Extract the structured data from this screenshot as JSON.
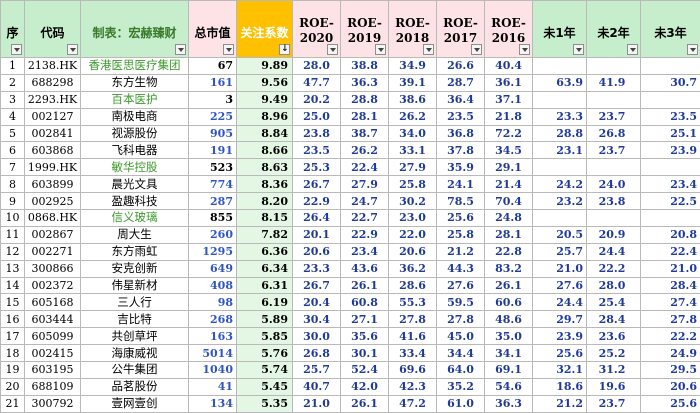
{
  "headers": {
    "seq": "序",
    "code": "代码",
    "title": "制表：宏赫臻财",
    "cap": "总市值",
    "focus": "关注系数",
    "roe2020": "ROE-2020",
    "roe2019": "ROE-2019",
    "roe2018": "ROE-2018",
    "roe2017": "ROE-2017",
    "roe2016": "ROE-2016",
    "y1": "未1年",
    "y2": "未2年",
    "y3": "未3年"
  },
  "colors": {
    "header_green": "#c6eecd",
    "header_pink": "#fde3e6",
    "header_orange": "#ffc000",
    "focus_cell": "#e4f7e4",
    "value_blue": "#1f3a9b",
    "hk_name_green": "#3a9a2a"
  },
  "rows": [
    {
      "seq": "1",
      "code": "2138.HK",
      "name": "香港医思医疗集团",
      "cap": "67",
      "focus": "9.89",
      "r2020": "28.0",
      "r2019": "38.8",
      "r2018": "34.9",
      "r2017": "26.6",
      "r2016": "40.4",
      "f1": "",
      "f2": "",
      "f3": ""
    },
    {
      "seq": "2",
      "code": "688298",
      "name": "东方生物",
      "cap": "161",
      "focus": "9.56",
      "r2020": "47.7",
      "r2019": "36.3",
      "r2018": "39.1",
      "r2017": "28.7",
      "r2016": "36.1",
      "f1": "63.9",
      "f2": "41.9",
      "f3": "30.7"
    },
    {
      "seq": "3",
      "code": "2293.HK",
      "name": "百本医护",
      "cap": "3",
      "focus": "9.49",
      "r2020": "20.2",
      "r2019": "28.8",
      "r2018": "38.6",
      "r2017": "36.4",
      "r2016": "37.1",
      "f1": "",
      "f2": "",
      "f3": ""
    },
    {
      "seq": "4",
      "code": "002127",
      "name": "南极电商",
      "cap": "225",
      "focus": "8.96",
      "r2020": "25.0",
      "r2019": "28.1",
      "r2018": "26.2",
      "r2017": "23.5",
      "r2016": "21.8",
      "f1": "23.3",
      "f2": "23.7",
      "f3": "23.5"
    },
    {
      "seq": "5",
      "code": "002841",
      "name": "视源股份",
      "cap": "905",
      "focus": "8.84",
      "r2020": "23.8",
      "r2019": "38.7",
      "r2018": "34.0",
      "r2017": "36.8",
      "r2016": "72.2",
      "f1": "28.8",
      "f2": "26.8",
      "f3": "25.1"
    },
    {
      "seq": "6",
      "code": "603868",
      "name": "飞科电器",
      "cap": "191",
      "focus": "8.66",
      "r2020": "23.5",
      "r2019": "26.2",
      "r2018": "33.1",
      "r2017": "37.8",
      "r2016": "34.5",
      "f1": "23.1",
      "f2": "23.7",
      "f3": "23.9"
    },
    {
      "seq": "7",
      "code": "1999.HK",
      "name": "敏华控股",
      "cap": "523",
      "focus": "8.63",
      "r2020": "25.3",
      "r2019": "22.4",
      "r2018": "27.9",
      "r2017": "35.9",
      "r2016": "29.1",
      "f1": "",
      "f2": "",
      "f3": ""
    },
    {
      "seq": "8",
      "code": "603899",
      "name": "晨光文具",
      "cap": "774",
      "focus": "8.36",
      "r2020": "26.7",
      "r2019": "27.9",
      "r2018": "25.8",
      "r2017": "24.1",
      "r2016": "21.4",
      "f1": "24.2",
      "f2": "24.0",
      "f3": "23.4"
    },
    {
      "seq": "9",
      "code": "002925",
      "name": "盈趣科技",
      "cap": "287",
      "focus": "8.20",
      "r2020": "22.9",
      "r2019": "24.7",
      "r2018": "30.2",
      "r2017": "78.5",
      "r2016": "70.4",
      "f1": "23.2",
      "f2": "23.8",
      "f3": "22.5"
    },
    {
      "seq": "10",
      "code": "0868.HK",
      "name": "信义玻璃",
      "cap": "855",
      "focus": "8.15",
      "r2020": "26.4",
      "r2019": "22.7",
      "r2018": "23.0",
      "r2017": "25.6",
      "r2016": "24.8",
      "f1": "",
      "f2": "",
      "f3": ""
    },
    {
      "seq": "11",
      "code": "002867",
      "name": "周大生",
      "cap": "260",
      "focus": "7.82",
      "r2020": "20.1",
      "r2019": "22.9",
      "r2018": "22.0",
      "r2017": "25.8",
      "r2016": "28.1",
      "f1": "20.5",
      "f2": "20.9",
      "f3": "20.8"
    },
    {
      "seq": "12",
      "code": "002271",
      "name": "东方雨虹",
      "cap": "1295",
      "focus": "6.36",
      "r2020": "20.6",
      "r2019": "23.4",
      "r2018": "20.6",
      "r2017": "21.2",
      "r2016": "22.8",
      "f1": "25.7",
      "f2": "24.4",
      "f3": "22.4"
    },
    {
      "seq": "13",
      "code": "300866",
      "name": "安克创新",
      "cap": "649",
      "focus": "6.34",
      "r2020": "23.3",
      "r2019": "43.6",
      "r2018": "36.2",
      "r2017": "44.3",
      "r2016": "83.2",
      "f1": "21.0",
      "f2": "22.2",
      "f3": "21.0"
    },
    {
      "seq": "14",
      "code": "002372",
      "name": "伟星新材",
      "cap": "408",
      "focus": "6.31",
      "r2020": "26.7",
      "r2019": "26.1",
      "r2018": "28.6",
      "r2017": "27.6",
      "r2016": "26.1",
      "f1": "27.6",
      "f2": "28.0",
      "f3": "28.4"
    },
    {
      "seq": "15",
      "code": "605168",
      "name": "三人行",
      "cap": "98",
      "focus": "6.19",
      "r2020": "20.4",
      "r2019": "60.8",
      "r2018": "55.3",
      "r2017": "59.5",
      "r2016": "60.6",
      "f1": "24.4",
      "f2": "25.4",
      "f3": "27.4"
    },
    {
      "seq": "16",
      "code": "603444",
      "name": "吉比特",
      "cap": "268",
      "focus": "5.89",
      "r2020": "30.4",
      "r2019": "27.1",
      "r2018": "27.8",
      "r2017": "27.8",
      "r2016": "48.6",
      "f1": "29.7",
      "f2": "28.4",
      "f3": "27.8"
    },
    {
      "seq": "17",
      "code": "605099",
      "name": "共创草坪",
      "cap": "163",
      "focus": "5.85",
      "r2020": "30.0",
      "r2019": "35.6",
      "r2018": "41.6",
      "r2017": "45.0",
      "r2016": "35.0",
      "f1": "23.9",
      "f2": "23.6",
      "f3": "22.2"
    },
    {
      "seq": "18",
      "code": "002415",
      "name": "海康威视",
      "cap": "5014",
      "focus": "5.76",
      "r2020": "26.8",
      "r2019": "30.1",
      "r2018": "33.4",
      "r2017": "34.4",
      "r2016": "34.1",
      "f1": "25.6",
      "f2": "25.2",
      "f3": "24.9"
    },
    {
      "seq": "19",
      "code": "603195",
      "name": "公牛集团",
      "cap": "1040",
      "focus": "5.74",
      "r2020": "25.7",
      "r2019": "52.4",
      "r2018": "69.6",
      "r2017": "64.0",
      "r2016": "69.1",
      "f1": "32.1",
      "f2": "31.2",
      "f3": "29.5"
    },
    {
      "seq": "20",
      "code": "688109",
      "name": "品茗股份",
      "cap": "41",
      "focus": "5.45",
      "r2020": "40.7",
      "r2019": "42.0",
      "r2018": "42.3",
      "r2017": "35.2",
      "r2016": "54.6",
      "f1": "18.6",
      "f2": "19.6",
      "f3": "20.6"
    },
    {
      "seq": "21",
      "code": "300792",
      "name": "壹网壹创",
      "cap": "134",
      "focus": "5.35",
      "r2020": "21.0",
      "r2019": "26.1",
      "r2018": "47.2",
      "r2017": "61.0",
      "r2016": "36.3",
      "f1": "21.2",
      "f2": "23.7",
      "f3": "25.6"
    }
  ]
}
